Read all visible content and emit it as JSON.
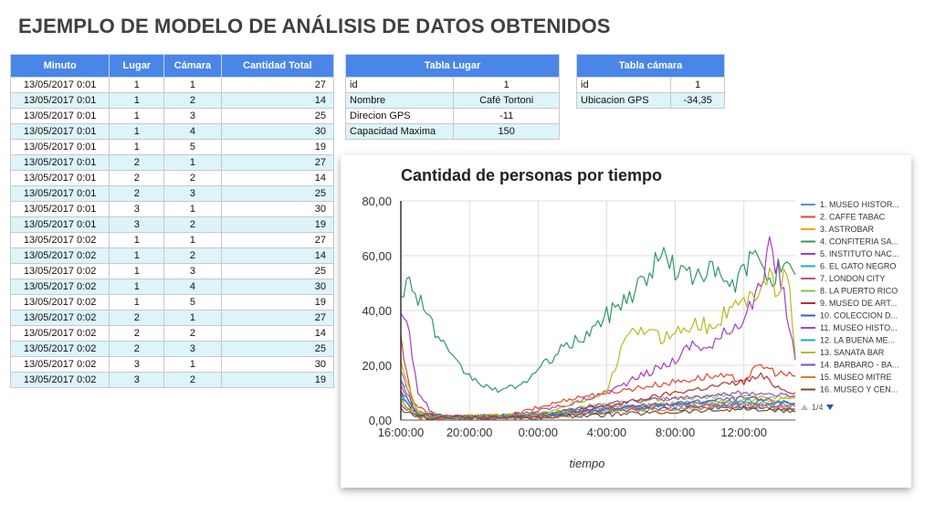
{
  "title": "EJEMPLO DE MODELO DE ANÁLISIS DE DATOS OBTENIDOS",
  "colors": {
    "header": "#4a86e8",
    "alt_row": "#dcf4fa"
  },
  "main_table": {
    "headers": [
      "Minuto",
      "Lugar",
      "Cámara",
      "Cantidad Total"
    ],
    "rows": [
      [
        "13/05/2017 0:01",
        "1",
        "1",
        "27"
      ],
      [
        "13/05/2017 0:01",
        "1",
        "2",
        "14"
      ],
      [
        "13/05/2017 0:01",
        "1",
        "3",
        "25"
      ],
      [
        "13/05/2017 0:01",
        "1",
        "4",
        "30"
      ],
      [
        "13/05/2017 0:01",
        "1",
        "5",
        "19"
      ],
      [
        "13/05/2017 0:01",
        "2",
        "1",
        "27"
      ],
      [
        "13/05/2017 0:01",
        "2",
        "2",
        "14"
      ],
      [
        "13/05/2017 0:01",
        "2",
        "3",
        "25"
      ],
      [
        "13/05/2017 0:01",
        "3",
        "1",
        "30"
      ],
      [
        "13/05/2017 0:01",
        "3",
        "2",
        "19"
      ],
      [
        "13/05/2017 0:02",
        "1",
        "1",
        "27"
      ],
      [
        "13/05/2017 0:02",
        "1",
        "2",
        "14"
      ],
      [
        "13/05/2017 0:02",
        "1",
        "3",
        "25"
      ],
      [
        "13/05/2017 0:02",
        "1",
        "4",
        "30"
      ],
      [
        "13/05/2017 0:02",
        "1",
        "5",
        "19"
      ],
      [
        "13/05/2017 0:02",
        "2",
        "1",
        "27"
      ],
      [
        "13/05/2017 0:02",
        "2",
        "2",
        "14"
      ],
      [
        "13/05/2017 0:02",
        "2",
        "3",
        "25"
      ],
      [
        "13/05/2017 0:02",
        "3",
        "1",
        "30"
      ],
      [
        "13/05/2017 0:02",
        "3",
        "2",
        "19"
      ]
    ]
  },
  "lugar_table": {
    "header": "Tabla Lugar",
    "rows": [
      [
        "id",
        "1"
      ],
      [
        "Nombre",
        "Café Tortoni"
      ],
      [
        "Direcion GPS",
        "-11"
      ],
      [
        "Capacidad Maxima",
        "150"
      ]
    ]
  },
  "camara_table": {
    "header": "Tabla cámara",
    "rows": [
      [
        "id",
        "1"
      ],
      [
        "Ubicacion GPS",
        "-34,35"
      ]
    ]
  },
  "chart_data": {
    "type": "line",
    "title": "Cantidad de personas por tiempo",
    "xlabel": "tiempo",
    "ylabel": "",
    "x_ticks": [
      "16:00:00",
      "20:00:00",
      "0:00:00",
      "4:00:00",
      "8:00:00",
      "12:00:00"
    ],
    "x_range_hours": [
      16,
      39
    ],
    "y_ticks": [
      "0,00",
      "20,00",
      "40,00",
      "60,00",
      "80,00"
    ],
    "ylim": [
      0,
      80
    ],
    "grid": true,
    "legend_position": "right",
    "legend_page": "1/4",
    "series": [
      {
        "name": "1. MUSEO HISTOR...",
        "color": "#5b8bd6",
        "points": [
          [
            16,
            18
          ],
          [
            17,
            3
          ],
          [
            18,
            1
          ],
          [
            20,
            1
          ],
          [
            24,
            2
          ],
          [
            28,
            4
          ],
          [
            32,
            6
          ],
          [
            36,
            5
          ],
          [
            39,
            4
          ]
        ]
      },
      {
        "name": "2. CAFFE TABAC",
        "color": "#e8442f",
        "points": [
          [
            16,
            30
          ],
          [
            16.7,
            6
          ],
          [
            18,
            1
          ],
          [
            22,
            1
          ],
          [
            26,
            8
          ],
          [
            28,
            10
          ],
          [
            30,
            12
          ],
          [
            32,
            14
          ],
          [
            34,
            16
          ],
          [
            36,
            15
          ],
          [
            37,
            20
          ],
          [
            38,
            17
          ],
          [
            39,
            16
          ]
        ]
      },
      {
        "name": "3. ASTROBAR",
        "color": "#f4a21b",
        "points": [
          [
            16,
            20
          ],
          [
            17,
            3
          ],
          [
            19,
            1
          ],
          [
            24,
            2
          ],
          [
            28,
            5
          ],
          [
            32,
            6
          ],
          [
            36,
            7
          ],
          [
            39,
            8
          ]
        ]
      },
      {
        "name": "4. CONFITERIA SA...",
        "color": "#2e9a5e",
        "points": [
          [
            16,
            48
          ],
          [
            16.5,
            50
          ],
          [
            17,
            46
          ],
          [
            17.5,
            40
          ],
          [
            18,
            32
          ],
          [
            19,
            22
          ],
          [
            20,
            16
          ],
          [
            21,
            12
          ],
          [
            21.5,
            11
          ],
          [
            22,
            11
          ],
          [
            23,
            13
          ],
          [
            24,
            18
          ],
          [
            25,
            24
          ],
          [
            26,
            28
          ],
          [
            27,
            32
          ],
          [
            28,
            38
          ],
          [
            29,
            44
          ],
          [
            30,
            50
          ],
          [
            31,
            58
          ],
          [
            31.5,
            62
          ],
          [
            32,
            54
          ],
          [
            32.5,
            54
          ],
          [
            33,
            52
          ],
          [
            33.5,
            56
          ],
          [
            34,
            54
          ],
          [
            35,
            50
          ],
          [
            35.5,
            48
          ],
          [
            36,
            56
          ],
          [
            36.5,
            58
          ],
          [
            37,
            60
          ],
          [
            37.5,
            52
          ],
          [
            38,
            55
          ],
          [
            39,
            53
          ]
        ]
      },
      {
        "name": "5. INSTITUTO NAC...",
        "color": "#a63bc6",
        "points": [
          [
            16,
            40
          ],
          [
            16.5,
            30
          ],
          [
            17,
            10
          ],
          [
            18,
            1
          ],
          [
            22,
            1
          ],
          [
            26,
            6
          ],
          [
            28,
            10
          ],
          [
            30,
            16
          ],
          [
            32,
            22
          ],
          [
            33,
            28
          ],
          [
            34,
            26
          ],
          [
            35,
            32
          ],
          [
            36,
            38
          ],
          [
            37,
            48
          ],
          [
            37.5,
            62
          ],
          [
            38,
            56
          ],
          [
            38.5,
            40
          ],
          [
            39,
            22
          ]
        ]
      },
      {
        "name": "6. EL GATO NEGRO",
        "color": "#22a8c8",
        "points": [
          [
            16,
            10
          ],
          [
            17,
            2
          ],
          [
            19,
            1
          ],
          [
            24,
            2
          ],
          [
            28,
            3
          ],
          [
            32,
            5
          ],
          [
            36,
            6
          ],
          [
            39,
            5
          ]
        ]
      },
      {
        "name": "7. LONDON CITY",
        "color": "#d04a78",
        "points": [
          [
            16,
            12
          ],
          [
            17,
            2
          ],
          [
            19,
            1
          ],
          [
            24,
            1
          ],
          [
            28,
            4
          ],
          [
            32,
            5
          ],
          [
            36,
            6
          ],
          [
            39,
            5
          ]
        ]
      },
      {
        "name": "8. LA PUERTO RICO",
        "color": "#8bc23e",
        "points": [
          [
            16,
            16
          ],
          [
            17,
            3
          ],
          [
            19,
            1
          ],
          [
            24,
            2
          ],
          [
            28,
            6
          ],
          [
            32,
            8
          ],
          [
            36,
            9
          ],
          [
            39,
            8
          ]
        ]
      },
      {
        "name": "9. MUSEO DE ART...",
        "color": "#b03030",
        "points": [
          [
            16,
            8
          ],
          [
            17,
            2
          ],
          [
            19,
            1
          ],
          [
            24,
            2
          ],
          [
            28,
            5
          ],
          [
            32,
            10
          ],
          [
            34,
            12
          ],
          [
            36,
            14
          ],
          [
            37,
            16
          ],
          [
            38,
            12
          ],
          [
            39,
            10
          ]
        ]
      },
      {
        "name": "10. COLECCION D...",
        "color": "#3a5ea8",
        "points": [
          [
            16,
            6
          ],
          [
            17,
            1
          ],
          [
            20,
            1
          ],
          [
            24,
            1
          ],
          [
            28,
            3
          ],
          [
            32,
            4
          ],
          [
            36,
            5
          ],
          [
            39,
            4
          ]
        ]
      },
      {
        "name": "11. MUSEO HISTO...",
        "color": "#9a4dbf",
        "points": [
          [
            16,
            14
          ],
          [
            17,
            2
          ],
          [
            19,
            1
          ],
          [
            24,
            2
          ],
          [
            28,
            6
          ],
          [
            32,
            8
          ],
          [
            36,
            10
          ],
          [
            39,
            9
          ]
        ]
      },
      {
        "name": "12. LA BUENA ME...",
        "color": "#17b0a0",
        "points": [
          [
            16,
            9
          ],
          [
            17,
            2
          ],
          [
            19,
            1
          ],
          [
            24,
            2
          ],
          [
            28,
            4
          ],
          [
            32,
            6
          ],
          [
            36,
            7
          ],
          [
            39,
            6
          ]
        ]
      },
      {
        "name": "13. SANATA BAR",
        "color": "#b8b820",
        "points": [
          [
            16,
            5
          ],
          [
            18,
            1
          ],
          [
            24,
            2
          ],
          [
            28,
            10
          ],
          [
            29,
            28
          ],
          [
            30,
            34
          ],
          [
            31,
            30
          ],
          [
            32,
            32
          ],
          [
            33,
            36
          ],
          [
            34,
            34
          ],
          [
            35,
            40
          ],
          [
            36,
            42
          ],
          [
            37,
            50
          ],
          [
            37.5,
            55
          ],
          [
            38,
            44
          ],
          [
            38.5,
            56
          ],
          [
            39,
            24
          ]
        ]
      },
      {
        "name": "14. BARBARO - BA...",
        "color": "#6b53c2",
        "points": [
          [
            16,
            11
          ],
          [
            17,
            2
          ],
          [
            19,
            1
          ],
          [
            24,
            1
          ],
          [
            28,
            4
          ],
          [
            32,
            6
          ],
          [
            36,
            8
          ],
          [
            39,
            6
          ]
        ]
      },
      {
        "name": "15. MUSEO MITRE",
        "color": "#e07a2c",
        "points": [
          [
            16,
            7
          ],
          [
            17,
            1
          ],
          [
            20,
            1
          ],
          [
            24,
            1
          ],
          [
            28,
            3
          ],
          [
            32,
            4
          ],
          [
            36,
            5
          ],
          [
            39,
            4
          ]
        ]
      },
      {
        "name": "16. MUSEO Y CEN...",
        "color": "#7a4a30",
        "points": [
          [
            16,
            4
          ],
          [
            17,
            1
          ],
          [
            20,
            1
          ],
          [
            24,
            1
          ],
          [
            28,
            2
          ],
          [
            32,
            3
          ],
          [
            36,
            4
          ],
          [
            39,
            3
          ]
        ]
      }
    ]
  }
}
